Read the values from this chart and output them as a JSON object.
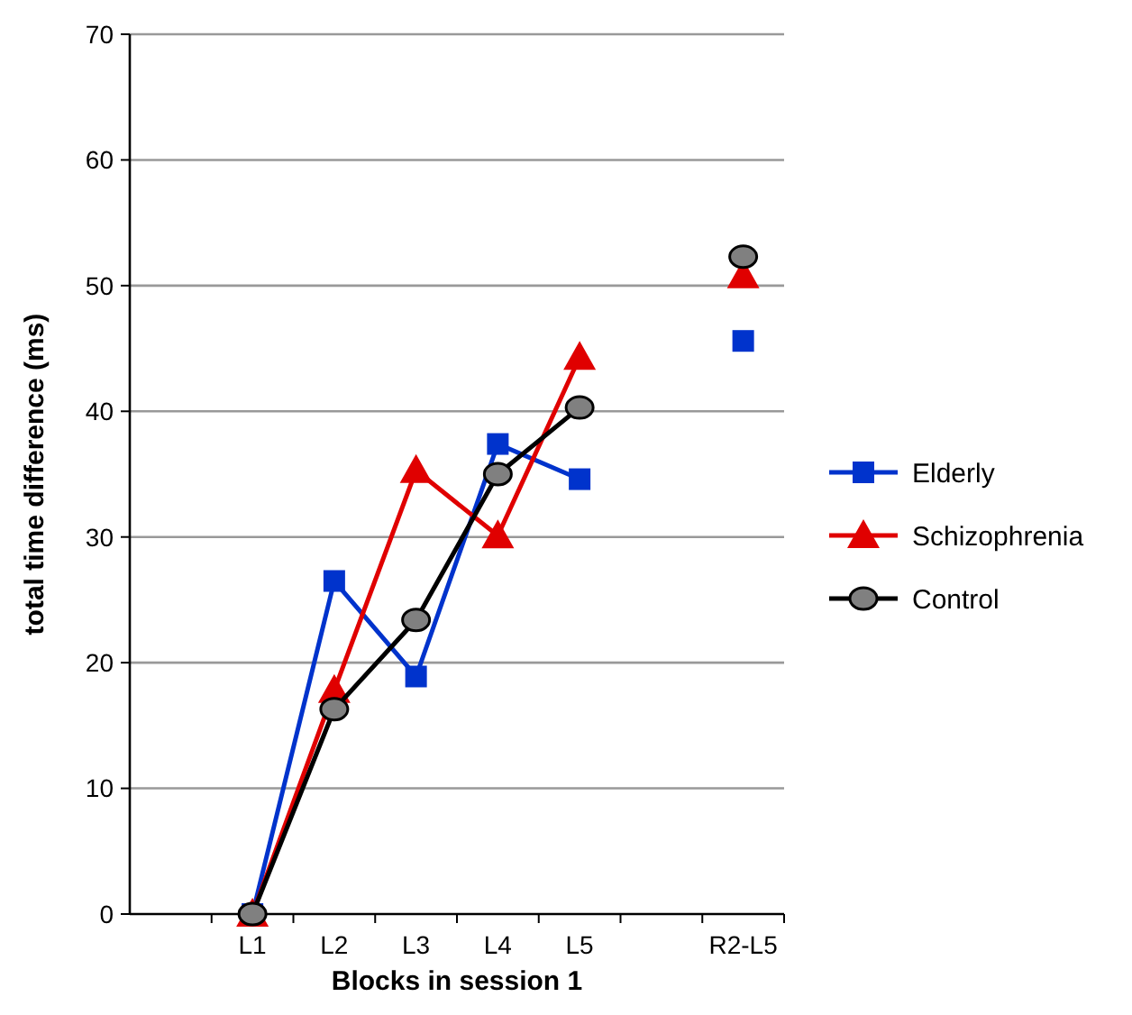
{
  "chart_data": {
    "type": "line",
    "xlabel": "Blocks in session 1",
    "ylabel": "total time difference (ms)",
    "categories": [
      null,
      "L1",
      "L2",
      "L3",
      "L4",
      "L5",
      null,
      "R2-L5"
    ],
    "ylim": [
      0,
      70
    ],
    "yticks": [
      0,
      10,
      20,
      30,
      40,
      50,
      60,
      70
    ],
    "grid": "y",
    "legend": "right",
    "line_style": "solid",
    "series": [
      {
        "name": "Elderly",
        "color": "#0033cc",
        "marker": "square",
        "values": [
          null,
          0,
          26.5,
          18.9,
          37.4,
          34.6,
          null,
          45.6
        ]
      },
      {
        "name": "Schizophrenia",
        "color": "#e00000",
        "marker": "triangle",
        "values": [
          null,
          0,
          17.8,
          35.3,
          30.1,
          44.3,
          null,
          50.8
        ]
      },
      {
        "name": "Control",
        "color": "#000000",
        "marker": "circle",
        "values": [
          null,
          0,
          16.3,
          23.4,
          35.0,
          40.3,
          null,
          52.3
        ]
      }
    ]
  }
}
